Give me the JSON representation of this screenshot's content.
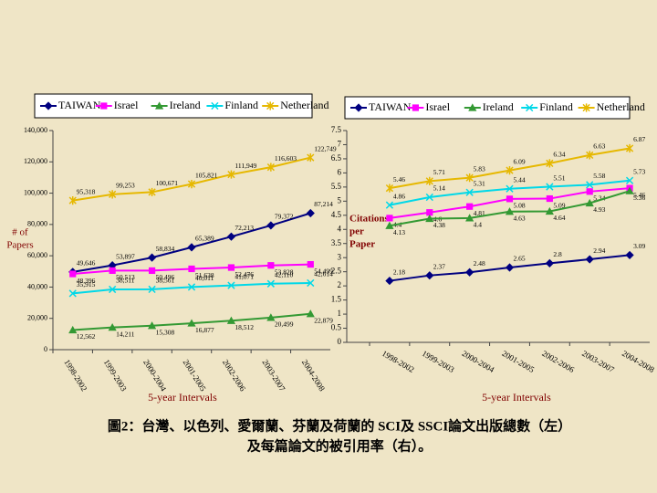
{
  "chart_data": [
    {
      "type": "line",
      "y_label": [
        "# of",
        "Papers"
      ],
      "x_label": "5-year Intervals",
      "categories": [
        "1998-2002",
        "1999-2003",
        "2000-2004",
        "2001-2005",
        "2002-2006",
        "2003-2007",
        "2004-2008"
      ],
      "ylim": [
        0,
        140000
      ],
      "yticks": [
        0,
        {
          "value": 20000,
          "label": "20,000"
        },
        {
          "value": 40000,
          "label": "40,000"
        },
        {
          "value": 60000,
          "label": "60,000"
        },
        {
          "value": 80000,
          "label": "80,000"
        },
        {
          "value": 100000,
          "label": "100,000"
        },
        {
          "value": 120000,
          "label": "120,000"
        },
        {
          "value": 140000,
          "label": "140,000"
        }
      ],
      "series": [
        {
          "name": "TAIWAN",
          "color": "#000080",
          "marker": "diamond",
          "values": [
            49646,
            53897,
            58834,
            65389,
            72213,
            79372,
            87214
          ],
          "value_labels": [
            "49,646",
            "53,897",
            "58,834",
            "65,389",
            "72,213",
            "79,372",
            "87,214"
          ]
        },
        {
          "name": "Israel",
          "color": "#ff00ff",
          "marker": "square",
          "values": [
            48396,
            50513,
            50496,
            51638,
            52476,
            53828,
            54499
          ],
          "value_labels": [
            "48,396",
            "50,513",
            "50,496",
            "51,638",
            "52,476",
            "53,828",
            "54,499"
          ]
        },
        {
          "name": "Ireland",
          "color": "#339933",
          "marker": "triangle",
          "values": [
            12562,
            14211,
            15308,
            16877,
            18512,
            20499,
            22879
          ],
          "value_labels": [
            "12,562",
            "14,211",
            "15,308",
            "16,877",
            "18,512",
            "20,499",
            "22,879"
          ]
        },
        {
          "name": "Finland",
          "color": "#00d8e8",
          "marker": "x",
          "values": [
            35915,
            38511,
            38561,
            40011,
            41071,
            42110,
            42614
          ],
          "value_labels": [
            "35,915",
            "38,511",
            "38,561",
            "40,011",
            "41,071",
            "42,110",
            "42,614"
          ]
        },
        {
          "name": "Netherland",
          "color": "#e6b800",
          "marker": "star",
          "values": [
            95318,
            99253,
            100671,
            105821,
            111949,
            116603,
            122749
          ],
          "value_labels": [
            "95,318",
            "99,253",
            "100,671",
            "105,821",
            "111,949",
            "116,603",
            "122,749"
          ]
        }
      ]
    },
    {
      "type": "line",
      "y_label": [
        "Citations",
        "per",
        "Paper"
      ],
      "x_label": "5-year Intervals",
      "categories": [
        "1998-2002",
        "1999-2003",
        "2000-2004",
        "2001-2005",
        "2002-2006",
        "2003-2007",
        "2004-2008"
      ],
      "ylim": [
        0,
        7.5
      ],
      "yticks": [
        0,
        0.5,
        1,
        1.5,
        2,
        2.5,
        3,
        3.5,
        4,
        4.5,
        5,
        5.5,
        6,
        6.5,
        7,
        7.5
      ],
      "series": [
        {
          "name": "TAIWAN",
          "color": "#000080",
          "marker": "diamond",
          "values": [
            2.18,
            2.37,
            2.48,
            2.65,
            2.8,
            2.94,
            3.09
          ]
        },
        {
          "name": "Israel",
          "color": "#ff00ff",
          "marker": "square",
          "values": [
            4.4,
            4.6,
            4.81,
            5.08,
            5.09,
            5.34,
            5.46
          ]
        },
        {
          "name": "Ireland",
          "color": "#339933",
          "marker": "triangle",
          "values": [
            4.13,
            4.38,
            4.4,
            4.63,
            4.64,
            4.93,
            5.36
          ]
        },
        {
          "name": "Finland",
          "color": "#00d8e8",
          "marker": "x",
          "values": [
            4.86,
            5.14,
            5.31,
            5.44,
            5.51,
            5.58,
            5.73
          ]
        },
        {
          "name": "Netherland",
          "color": "#e6b800",
          "marker": "star",
          "values": [
            5.46,
            5.71,
            5.83,
            6.09,
            6.34,
            6.63,
            6.87
          ]
        }
      ]
    }
  ],
  "caption": [
    "圖2：台灣、以色列、愛爾蘭、芬蘭及荷蘭的 SCI及 SSCI論文出版總數（左）",
    "及每篇論文的被引用率（右）。"
  ]
}
